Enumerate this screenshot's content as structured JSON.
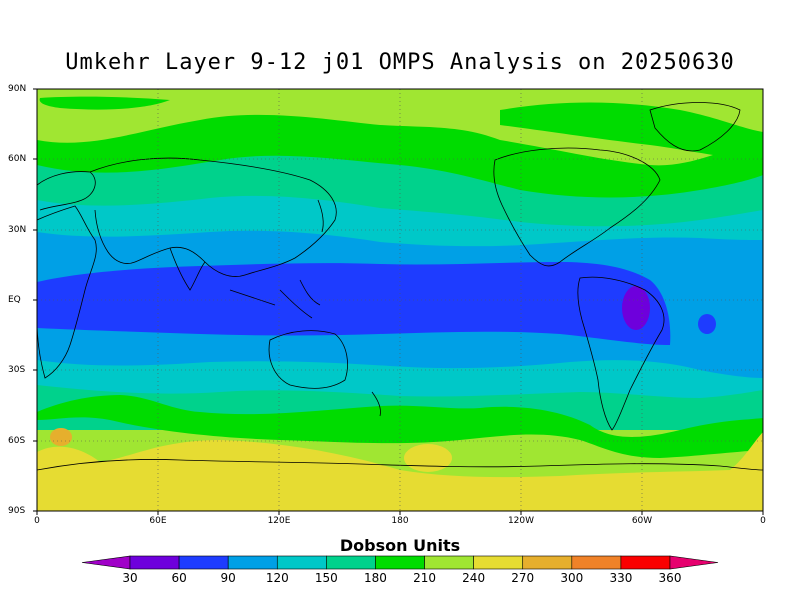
{
  "title": "Umkehr Layer 9-12 j01 OMPS Analysis on 20250630",
  "latitude_labels": [
    "90N",
    "60N",
    "30N",
    "EQ",
    "30S",
    "60S",
    "90S"
  ],
  "longitude_labels": [
    "0",
    "60E",
    "120E",
    "180",
    "120W",
    "60W",
    "0"
  ],
  "colorbar": {
    "title": "Dobson Units",
    "ticks": [
      "30",
      "60",
      "90",
      "120",
      "150",
      "180",
      "210",
      "240",
      "270",
      "300",
      "330",
      "360"
    ],
    "colors": [
      "#a000c8",
      "#6e00dc",
      "#1e3cff",
      "#00a0e6",
      "#00c8c8",
      "#00d28c",
      "#00dc00",
      "#a0e632",
      "#e6dc32",
      "#e6af2d",
      "#f08228",
      "#fa0000",
      "#e6006e"
    ]
  },
  "map": {
    "projection": "cylindrical equidistant",
    "lon_range": [
      0,
      360
    ],
    "lat_range": [
      -90,
      90
    ],
    "field": "Umkehr Layer 9-12 ozone (Dobson Units)",
    "band_colors": {
      "arctic": "#a0e632",
      "high_lat_north": "#00dc00",
      "mid_lat_north": "#00d28c",
      "subtropics_north": "#00c8c8",
      "tropics_outer": "#00a0e6",
      "equatorial": "#1e3cff",
      "amazon_max": "#6e00dc",
      "southern_mid": "#00d28c",
      "southern_high": "#a0e632",
      "antarctic": "#e6dc32",
      "south_atlantic_spot": "#e6af2d"
    }
  }
}
